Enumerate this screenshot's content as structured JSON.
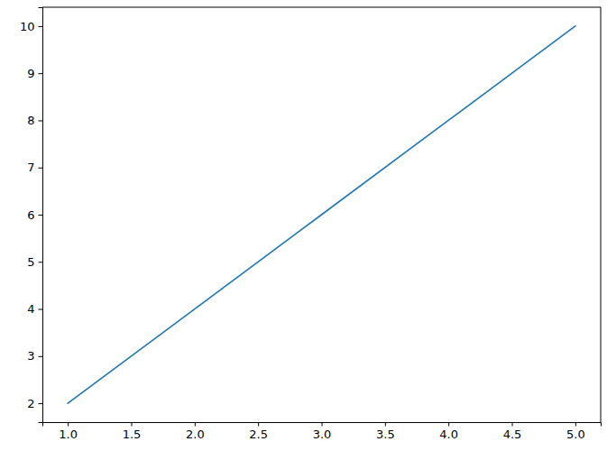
{
  "chart_data": {
    "type": "line",
    "x": [
      1,
      2,
      3,
      4,
      5
    ],
    "values": [
      2,
      4,
      6,
      8,
      10
    ],
    "color": "#1f77b4",
    "xlim": [
      0.8,
      5.2
    ],
    "xticks": [
      {
        "value": 1,
        "label": "1.0"
      },
      {
        "value": 1.5,
        "label": "1.5"
      },
      {
        "value": 2,
        "label": "2.0"
      },
      {
        "value": 2.5,
        "label": "2.5"
      },
      {
        "value": 3,
        "label": "3.0"
      },
      {
        "value": 3.5,
        "label": "3.5"
      },
      {
        "value": 4,
        "label": "4.0"
      },
      {
        "value": 4.5,
        "label": "4.5"
      },
      {
        "value": 5,
        "label": "5.0"
      }
    ],
    "ylim": [
      1.6,
      10.4
    ],
    "yticks": [
      2,
      3,
      4,
      5,
      6,
      7,
      8,
      9,
      10
    ],
    "grid": false
  }
}
